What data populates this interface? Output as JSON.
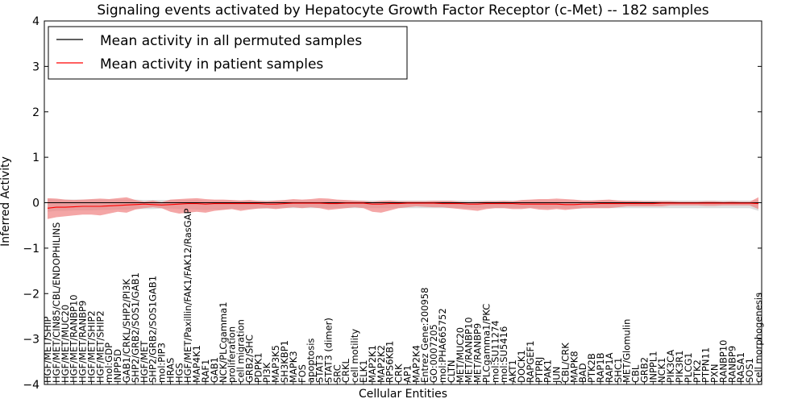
{
  "chart_data": {
    "type": "line",
    "title": "Signaling events activated by Hepatocyte Growth Factor Receptor (c-Met) -- 182 samples",
    "xlabel": "Cellular Entities",
    "ylabel": "Inferred Activity",
    "ylim": [
      -4,
      4
    ],
    "yticks": [
      -4,
      -3,
      -2,
      -1,
      0,
      1,
      2,
      3,
      4
    ],
    "grid": false,
    "legend_position": "top-left",
    "colors": {
      "permuted": "#000000",
      "patient": "#ff0000",
      "patient_band": "#f08080",
      "permuted_band": "#c8c8c8"
    },
    "categories": [
      "HGF/MET/SHIP",
      "HGF/MET/CIN85/CBL/ENDOPHILINS",
      "HGF/MET/MUC20",
      "HGF/MET/RANBP10",
      "HGF/MET/RANBP9",
      "HGF/MET/SHIP2",
      "HGF/MET/SHIP2",
      "mol:GDP",
      "INPP5D",
      "GAB1/CRKL/SHP2/PI3K",
      "SHP2/GRB2/SOS1/GAB1",
      "HGF/MET",
      "SHP2/GRB2/SOS1GAB1",
      "mol:PIP3",
      "HRAS",
      "HGS",
      "HGF/MET/Paxillin/FAK1/FAK12/RasGAP",
      "MAP4K1",
      "RAF1",
      "GAB1",
      "NCK/PLCgamma1",
      "proliferation",
      "cell migration",
      "GRB2/SHC",
      "PDPK1",
      "PI3K",
      "MAP3K5",
      "SH3KBP1",
      "MAPK3",
      "FOS",
      "apoptosis",
      "STAT3",
      "STAT3 (dimer)",
      "SRC",
      "CRKL",
      "cell motility",
      "ELK1",
      "MAP2K1",
      "MAP2K2",
      "RPS6KB1",
      "CRK",
      "AP1",
      "MAP2K4",
      "Entrez Gene:200958",
      "GO:0007205",
      "mol:PHA665752",
      "CLTN",
      "MET/MUC20",
      "MET/RANBP10",
      "MET/RANBP9",
      "PLCgamma1/PKC",
      "mol:SU11274",
      "mol:SU5416",
      "AKT1",
      "DOCK1",
      "RAPGEF1",
      "PTPRJ",
      "PAK1",
      "JUN",
      "CBL/CRK",
      "MAPK8",
      "BAD",
      "PTK2B",
      "RAP1B",
      "RAP1A",
      "SHC1",
      "MET/Glomulin",
      "CBL",
      "GRB2",
      "INPPL1",
      "NCK1",
      "PIK3CA",
      "PIK3R1",
      "PLCG1",
      "PTK2",
      "PTPN11",
      "PXN",
      "RANBP10",
      "RANBP9",
      "RASA1",
      "SOS1",
      "cell morphogenesis"
    ],
    "series": [
      {
        "name": "Mean activity in all permuted samples",
        "color": "#000000",
        "values": [
          0.0,
          0.0,
          0.0,
          0.0,
          0.0,
          0.0,
          0.0,
          0.0,
          0.0,
          0.0,
          0.0,
          0.0,
          0.0,
          0.0,
          0.0,
          0.0,
          0.0,
          0.0,
          0.0,
          0.0,
          0.0,
          0.0,
          0.0,
          0.0,
          0.0,
          0.0,
          0.0,
          0.0,
          0.0,
          0.0,
          0.0,
          0.0,
          0.0,
          0.0,
          0.0,
          0.0,
          0.0,
          0.0,
          0.0,
          0.0,
          0.0,
          0.0,
          0.0,
          0.0,
          0.0,
          0.0,
          0.0,
          0.0,
          0.0,
          0.0,
          0.0,
          0.0,
          0.0,
          0.0,
          0.0,
          0.0,
          0.0,
          0.0,
          0.0,
          0.0,
          0.0,
          0.0,
          0.0,
          0.0,
          0.0,
          0.0,
          0.0,
          0.0,
          0.0,
          0.0,
          0.0,
          0.0,
          0.0,
          0.0,
          0.0,
          0.0,
          0.0,
          0.0,
          0.0,
          0.0,
          0.0,
          0.0
        ]
      },
      {
        "name": "Mean activity in patient samples",
        "color": "#ff0000",
        "values": [
          -0.12,
          -0.1,
          -0.1,
          -0.09,
          -0.08,
          -0.08,
          -0.08,
          -0.07,
          -0.06,
          -0.05,
          -0.04,
          -0.03,
          -0.04,
          -0.05,
          -0.04,
          -0.03,
          -0.02,
          -0.02,
          -0.03,
          -0.02,
          -0.02,
          -0.02,
          -0.02,
          -0.02,
          -0.02,
          -0.03,
          -0.03,
          -0.02,
          -0.01,
          -0.01,
          -0.01,
          -0.01,
          -0.02,
          -0.02,
          -0.01,
          -0.01,
          -0.01,
          -0.03,
          -0.03,
          -0.02,
          -0.02,
          -0.01,
          -0.01,
          -0.01,
          -0.01,
          -0.02,
          -0.02,
          -0.02,
          -0.03,
          -0.03,
          -0.02,
          -0.02,
          -0.02,
          -0.02,
          -0.03,
          -0.03,
          -0.03,
          -0.03,
          -0.03,
          -0.04,
          -0.04,
          -0.03,
          -0.03,
          -0.02,
          -0.02,
          -0.02,
          -0.02,
          -0.02,
          -0.02,
          -0.02,
          -0.01,
          -0.01,
          -0.01,
          -0.01,
          -0.01,
          -0.01,
          -0.01,
          -0.01,
          -0.01,
          -0.01,
          -0.01,
          -0.02
        ]
      }
    ],
    "patient_band": {
      "upper": [
        0.1,
        0.09,
        0.07,
        0.06,
        0.07,
        0.08,
        0.09,
        0.08,
        0.1,
        0.12,
        0.06,
        0.02,
        0.05,
        0.01,
        0.07,
        0.08,
        0.09,
        0.1,
        0.08,
        0.07,
        0.07,
        0.06,
        0.05,
        0.06,
        0.04,
        0.03,
        0.05,
        0.06,
        0.08,
        0.07,
        0.08,
        0.1,
        0.09,
        0.07,
        0.06,
        0.05,
        0.04,
        0.02,
        0.04,
        0.05,
        0.03,
        0.03,
        0.03,
        0.03,
        0.04,
        0.04,
        0.04,
        0.02,
        0.01,
        0.02,
        0.03,
        0.03,
        0.04,
        0.03,
        0.06,
        0.07,
        0.08,
        0.08,
        0.09,
        0.08,
        0.07,
        0.05,
        0.05,
        0.06,
        0.07,
        0.05,
        0.04,
        0.04,
        0.03,
        0.03,
        0.03,
        0.03,
        0.02,
        0.02,
        0.02,
        0.03,
        0.03,
        0.02,
        0.03,
        0.02,
        0.02,
        0.12
      ],
      "lower": [
        -0.36,
        -0.32,
        -0.3,
        -0.28,
        -0.26,
        -0.26,
        -0.28,
        -0.24,
        -0.2,
        -0.22,
        -0.15,
        -0.12,
        -0.1,
        -0.12,
        -0.2,
        -0.24,
        -0.22,
        -0.2,
        -0.22,
        -0.18,
        -0.16,
        -0.14,
        -0.18,
        -0.15,
        -0.13,
        -0.12,
        -0.14,
        -0.12,
        -0.1,
        -0.12,
        -0.1,
        -0.12,
        -0.16,
        -0.14,
        -0.12,
        -0.1,
        -0.12,
        -0.2,
        -0.22,
        -0.17,
        -0.12,
        -0.1,
        -0.08,
        -0.09,
        -0.1,
        -0.1,
        -0.12,
        -0.14,
        -0.16,
        -0.18,
        -0.14,
        -0.12,
        -0.12,
        -0.14,
        -0.14,
        -0.12,
        -0.15,
        -0.16,
        -0.14,
        -0.16,
        -0.14,
        -0.12,
        -0.12,
        -0.12,
        -0.12,
        -0.1,
        -0.08,
        -0.08,
        -0.08,
        -0.08,
        -0.08,
        -0.06,
        -0.06,
        -0.06,
        -0.06,
        -0.07,
        -0.07,
        -0.06,
        -0.06,
        -0.06,
        -0.06,
        -0.14
      ]
    },
    "permuted_band": {
      "upper": [
        0.08,
        0.07,
        0.07,
        0.07,
        0.07,
        0.07,
        0.07,
        0.07,
        0.07,
        0.07,
        0.07,
        0.06,
        0.06,
        0.06,
        0.06,
        0.06,
        0.06,
        0.06,
        0.05,
        0.05,
        0.05,
        0.05,
        0.05,
        0.05,
        0.05,
        0.05,
        0.05,
        0.05,
        0.05,
        0.05,
        0.05,
        0.05,
        0.05,
        0.05,
        0.05,
        0.05,
        0.05,
        0.05,
        0.05,
        0.05,
        0.05,
        0.05,
        0.05,
        0.05,
        0.05,
        0.05,
        0.05,
        0.05,
        0.05,
        0.05,
        0.05,
        0.05,
        0.05,
        0.05,
        0.05,
        0.05,
        0.05,
        0.05,
        0.05,
        0.05,
        0.05,
        0.05,
        0.05,
        0.05,
        0.05,
        0.05,
        0.05,
        0.05,
        0.05,
        0.05,
        0.05,
        0.05,
        0.05,
        0.05,
        0.05,
        0.05,
        0.05,
        0.05,
        0.05,
        0.05,
        0.05,
        0.06
      ],
      "lower": [
        -0.2,
        -0.18,
        -0.18,
        -0.17,
        -0.17,
        -0.17,
        -0.16,
        -0.16,
        -0.15,
        -0.15,
        -0.14,
        -0.14,
        -0.14,
        -0.13,
        -0.13,
        -0.14,
        -0.14,
        -0.15,
        -0.16,
        -0.15,
        -0.15,
        -0.14,
        -0.14,
        -0.14,
        -0.13,
        -0.13,
        -0.13,
        -0.12,
        -0.12,
        -0.12,
        -0.12,
        -0.12,
        -0.12,
        -0.12,
        -0.12,
        -0.12,
        -0.12,
        -0.12,
        -0.12,
        -0.12,
        -0.12,
        -0.12,
        -0.12,
        -0.12,
        -0.12,
        -0.12,
        -0.12,
        -0.12,
        -0.12,
        -0.12,
        -0.12,
        -0.12,
        -0.12,
        -0.12,
        -0.12,
        -0.12,
        -0.12,
        -0.12,
        -0.12,
        -0.13,
        -0.13,
        -0.13,
        -0.12,
        -0.12,
        -0.12,
        -0.12,
        -0.12,
        -0.12,
        -0.12,
        -0.12,
        -0.12,
        -0.12,
        -0.12,
        -0.12,
        -0.12,
        -0.12,
        -0.12,
        -0.12,
        -0.12,
        -0.12,
        -0.12,
        -0.18
      ]
    }
  }
}
